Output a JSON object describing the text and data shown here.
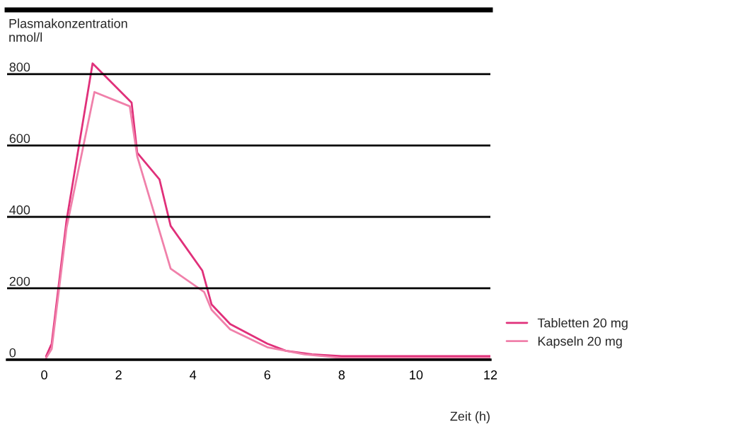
{
  "chart_data": {
    "type": "line",
    "ylabel": "Plasmakonzentration\nnmol/l",
    "xlabel": "Zeit (h)",
    "xlim": [
      -1,
      12
    ],
    "xticks": [
      0,
      2,
      4,
      6,
      8,
      10,
      12
    ],
    "ylim": [
      0,
      980
    ],
    "yticks": [
      0,
      200,
      400,
      600,
      800
    ],
    "grid": "y",
    "legend": "bottom right",
    "series": [
      {
        "name": "Tabletten 20 mg",
        "color": "#e0307a",
        "x": [
          0.05,
          0.2,
          0.6,
          1.3,
          2.35,
          2.5,
          3.1,
          3.4,
          4.25,
          4.5,
          5.0,
          6.0,
          6.5,
          7.2,
          8.0,
          12.0
        ],
        "values": [
          10,
          45,
          390,
          830,
          720,
          580,
          505,
          375,
          250,
          155,
          100,
          45,
          25,
          15,
          10,
          10
        ]
      },
      {
        "name": "Kapseln 20 mg",
        "color": "#f080aa",
        "x": [
          0.05,
          0.2,
          0.6,
          1.35,
          2.3,
          2.5,
          3.4,
          4.3,
          4.5,
          5.0,
          6.0,
          7.0,
          8.0,
          12.0
        ],
        "values": [
          5,
          30,
          370,
          750,
          710,
          570,
          255,
          190,
          140,
          85,
          35,
          15,
          5,
          5
        ]
      }
    ]
  }
}
